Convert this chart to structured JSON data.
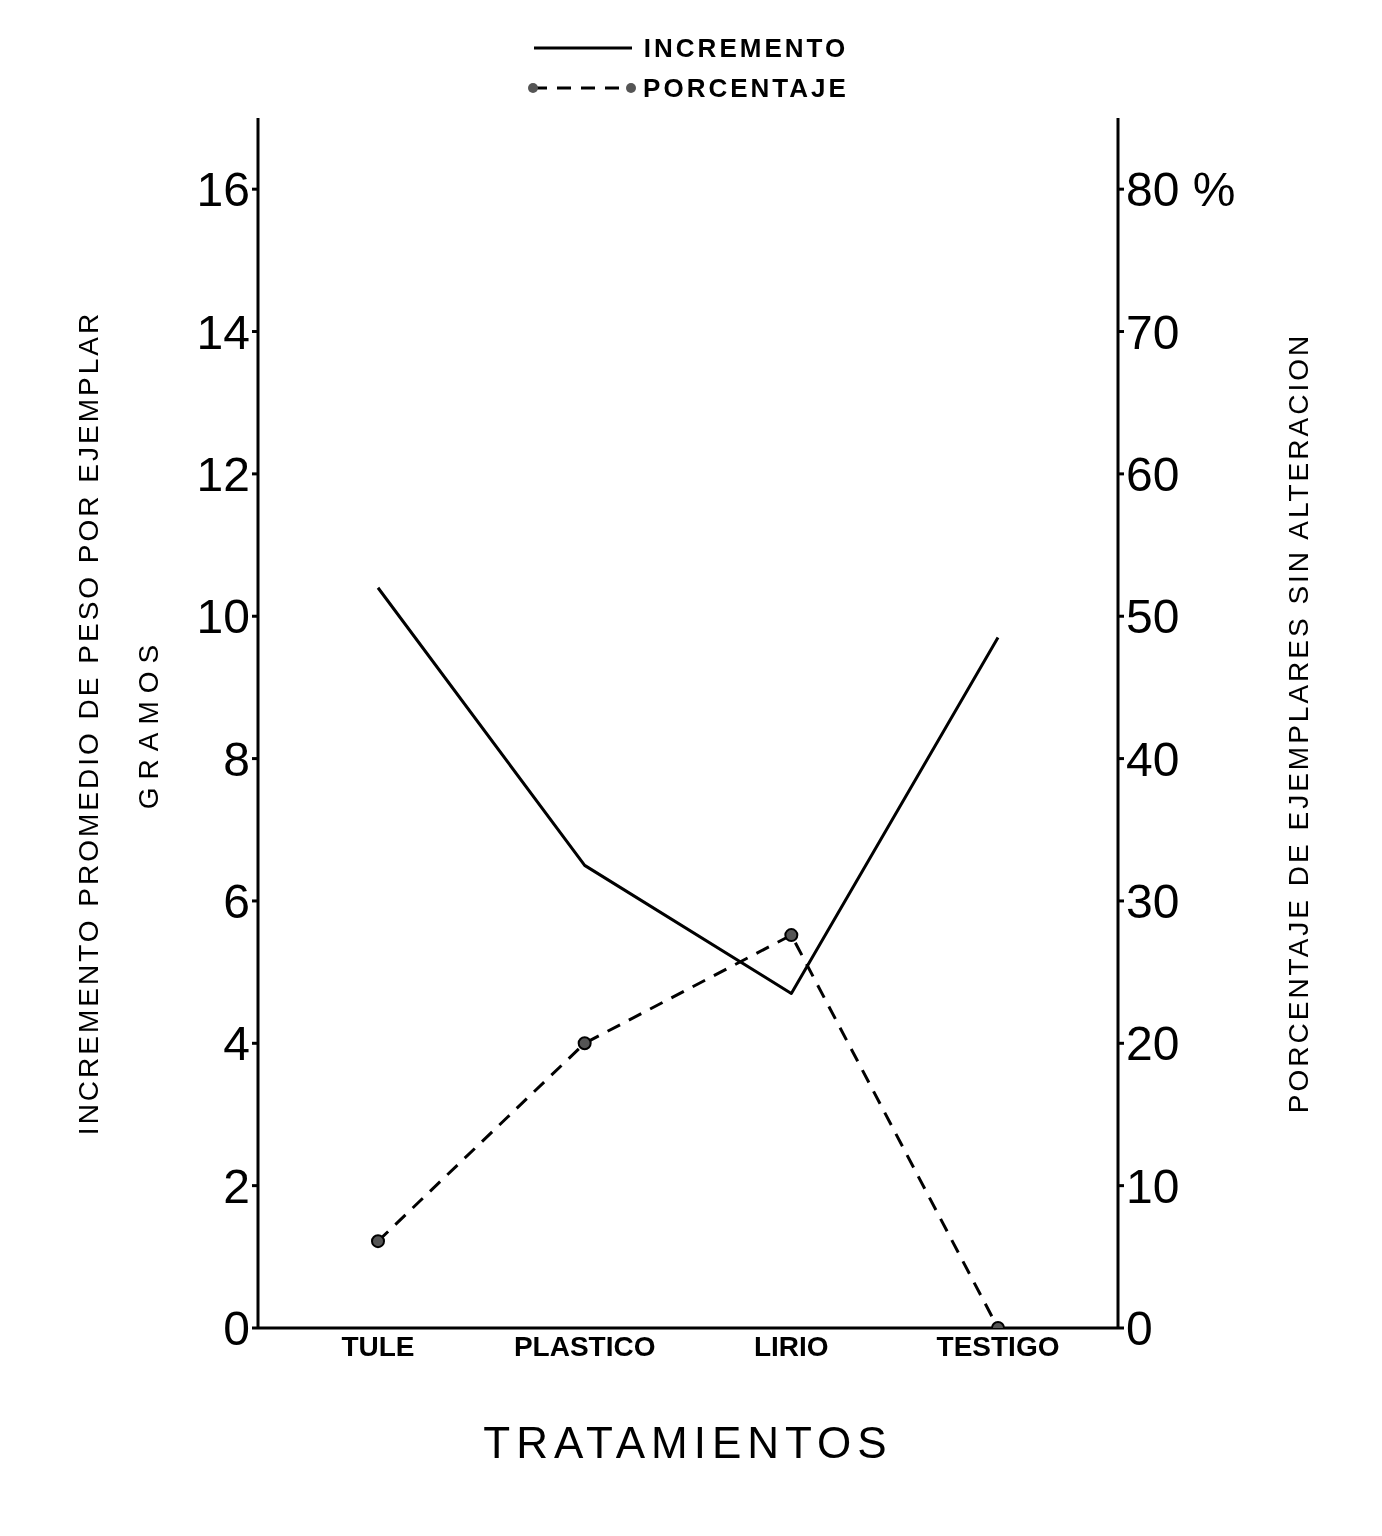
{
  "chart_data": {
    "type": "line",
    "xlabel": "TRATAMIENTOS",
    "ylabel": "INCREMENTO PROMEDIO DE PESO POR EJEMPLAR\nGRAMOS",
    "y2label": "PORCENTAJE DE EJEMPLARES SIN ALTERACION",
    "categories": [
      "TULE",
      "PLASTICO",
      "LIRIO",
      "TESTIGO"
    ],
    "series": [
      {
        "name": "INCREMENTO",
        "color": "#000000",
        "values": [
          10.4,
          6.5,
          4.7,
          9.7
        ],
        "marker": "none",
        "line_style": "solid"
      },
      {
        "name": "PORCENTAJE",
        "color": "#000000",
        "values": [
          6.1,
          20,
          27.6,
          0
        ],
        "axis": "y2",
        "marker": "circle",
        "line_style": "dashed"
      }
    ],
    "ylim": [
      0,
      17
    ],
    "yticks": [
      0,
      2,
      4,
      6,
      8,
      10,
      12,
      14,
      16
    ],
    "y2lim": [
      0,
      85
    ],
    "y2ticks": [
      0,
      10,
      20,
      30,
      40,
      50,
      60,
      70,
      {
        "value": 80,
        "label": "80 %"
      }
    ],
    "grid": false,
    "legend": "top"
  }
}
